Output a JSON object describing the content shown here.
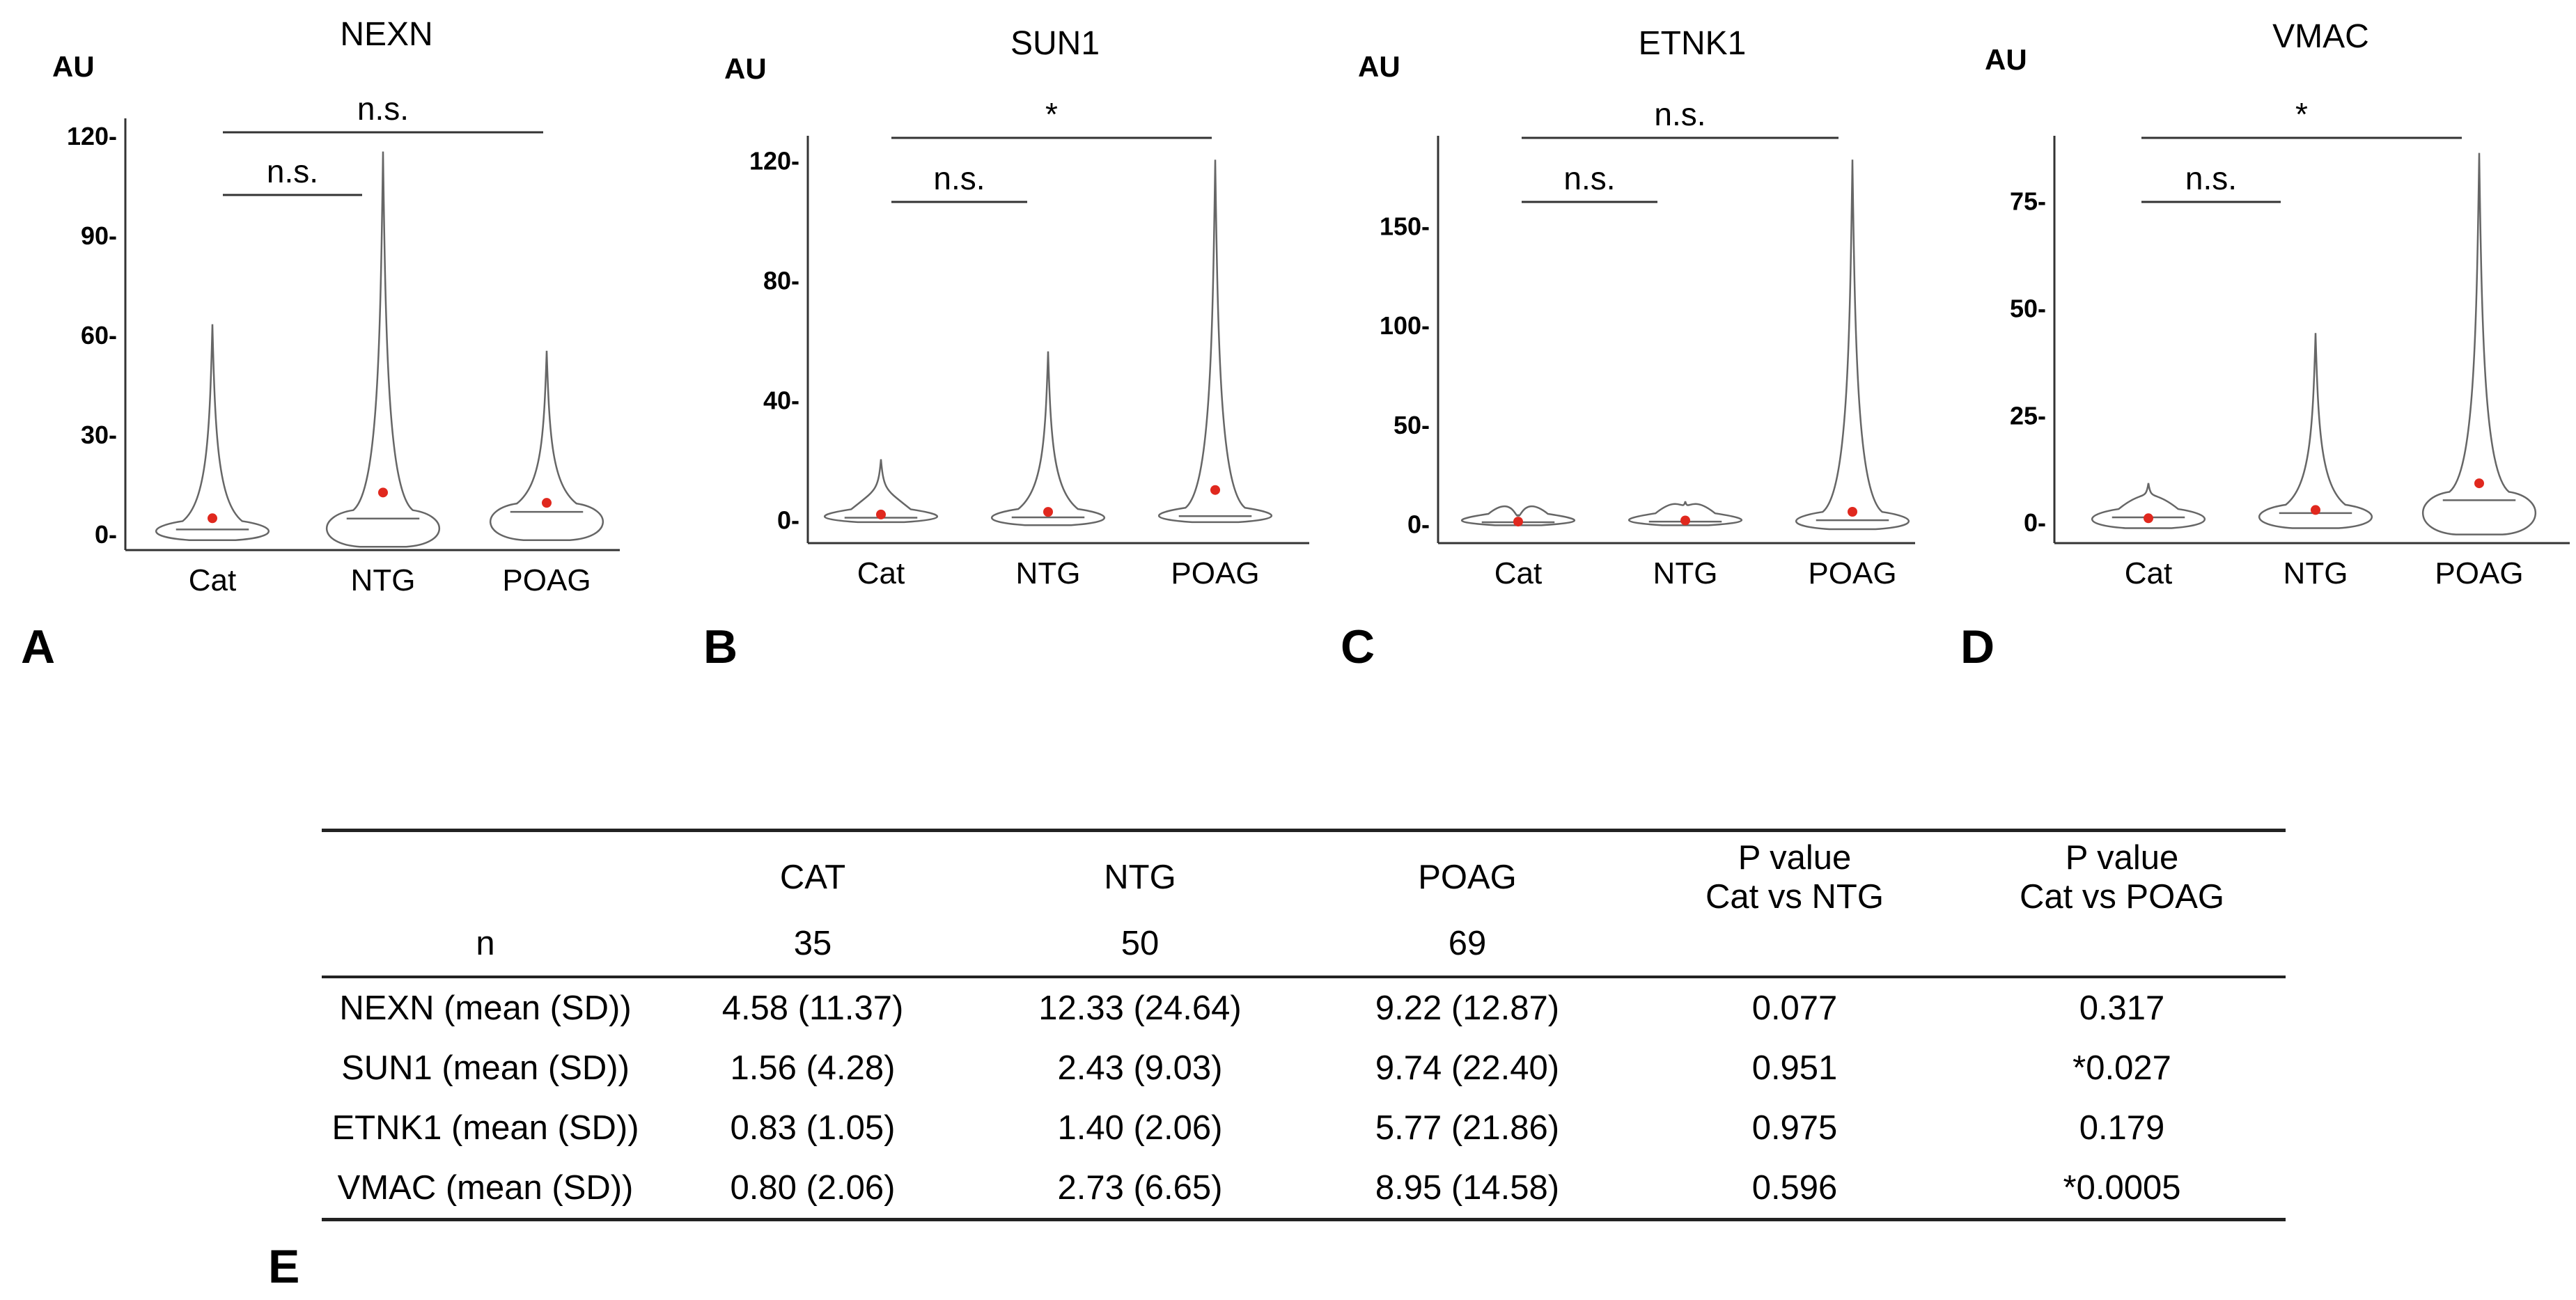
{
  "chart_data": [
    {
      "type": "violin",
      "panel": "A",
      "title": "NEXN",
      "ylabel": "AU",
      "categories": [
        "Cat",
        "NTG",
        "POAG"
      ],
      "ylim": [
        -5,
        125
      ],
      "yticks": [
        0,
        30,
        60,
        90,
        120
      ],
      "ytick_labels": [
        "0-",
        "30-",
        "60-",
        "90-",
        "120-"
      ],
      "means": [
        4.58,
        12.33,
        9.22
      ],
      "medians": [
        1.2,
        4.5,
        6.5
      ],
      "maxima": [
        63,
        115,
        55
      ],
      "minima": [
        -2,
        -4,
        -2
      ],
      "comparisons": [
        {
          "from": "Cat",
          "to": "NTG",
          "label": "n.s."
        },
        {
          "from": "Cat",
          "to": "POAG",
          "label": "n.s."
        }
      ]
    },
    {
      "type": "violin",
      "panel": "B",
      "title": "SUN1",
      "ylabel": "AU",
      "categories": [
        "Cat",
        "NTG",
        "POAG"
      ],
      "ylim": [
        -8,
        128
      ],
      "yticks": [
        0,
        40,
        80,
        120
      ],
      "ytick_labels": [
        "0-",
        "40-",
        "80-",
        "120-"
      ],
      "means": [
        1.56,
        2.43,
        9.74
      ],
      "medians": [
        0.5,
        0.6,
        1.0
      ],
      "maxima": [
        20,
        56,
        120
      ],
      "minima": [
        -1,
        -2,
        -1
      ],
      "comparisons": [
        {
          "from": "Cat",
          "to": "NTG",
          "label": "n.s."
        },
        {
          "from": "Cat",
          "to": "POAG",
          "label": "*"
        }
      ]
    },
    {
      "type": "violin",
      "panel": "C",
      "title": "ETNK1",
      "ylabel": "AU",
      "categories": [
        "Cat",
        "NTG",
        "POAG"
      ],
      "ylim": [
        -10,
        195
      ],
      "yticks": [
        0,
        50,
        100,
        150
      ],
      "ytick_labels": [
        "0-",
        "50-",
        "100-",
        "150-"
      ],
      "means": [
        0.83,
        1.4,
        5.77
      ],
      "medians": [
        0.5,
        0.8,
        1.5
      ],
      "maxima": [
        4,
        11,
        183
      ],
      "minima": [
        -1,
        -1,
        -3
      ],
      "comparisons": [
        {
          "from": "Cat",
          "to": "NTG",
          "label": "n.s."
        },
        {
          "from": "Cat",
          "to": "POAG",
          "label": "n.s."
        }
      ]
    },
    {
      "type": "violin",
      "panel": "D",
      "title": "VMAC",
      "ylabel": "AU",
      "categories": [
        "Cat",
        "NTG",
        "POAG"
      ],
      "ylim": [
        -5,
        90
      ],
      "yticks": [
        0,
        25,
        50,
        75
      ],
      "ytick_labels": [
        "0-",
        "25-",
        "50-",
        "75-"
      ],
      "means": [
        0.8,
        2.73,
        8.95
      ],
      "medians": [
        1.0,
        2.0,
        5.0
      ],
      "maxima": [
        9,
        44,
        86
      ],
      "minima": [
        -1.5,
        -1.5,
        -3
      ],
      "comparisons": [
        {
          "from": "Cat",
          "to": "NTG",
          "label": "n.s."
        },
        {
          "from": "Cat",
          "to": "POAG",
          "label": "*"
        }
      ]
    },
    {
      "type": "table",
      "panel": "E",
      "columns": [
        "",
        "CAT",
        "NTG",
        "POAG",
        "P value Cat vs NTG",
        "P value Cat vs POAG"
      ],
      "n_row": [
        "n",
        "35",
        "50",
        "69",
        "",
        ""
      ],
      "rows": [
        [
          "NEXN (mean (SD))",
          "4.58 (11.37)",
          "12.33 (24.64)",
          "9.22 (12.87)",
          "0.077",
          "0.317"
        ],
        [
          "SUN1 (mean (SD))",
          "1.56 (4.28)",
          "2.43 (9.03)",
          "9.74 (22.40)",
          "0.951",
          "*0.027"
        ],
        [
          "ETNK1 (mean (SD))",
          "0.83 (1.05)",
          "1.40 (2.06)",
          "5.77 (21.86)",
          "0.975",
          "0.179"
        ],
        [
          "VMAC (mean (SD))",
          "0.80 (2.06)",
          "2.73 (6.65)",
          "8.95 (14.58)",
          "0.596",
          "*0.0005"
        ]
      ]
    }
  ],
  "table": {
    "header": {
      "blank": "",
      "cat": "CAT",
      "ntg": "NTG",
      "poag": "POAG",
      "p1_line1": "P value",
      "p1_line2": "Cat vs NTG",
      "p2_line1": "P value",
      "p2_line2": "Cat vs POAG"
    },
    "n_row": {
      "label": "n",
      "cat": "35",
      "ntg": "50",
      "poag": "69",
      "p1": "",
      "p2": ""
    },
    "rows": [
      {
        "label": "NEXN (mean (SD))",
        "cat": "4.58 (11.37)",
        "ntg": "12.33 (24.64)",
        "poag": "9.22 (12.87)",
        "p1": "0.077",
        "p2": "0.317"
      },
      {
        "label": "SUN1 (mean (SD))",
        "cat": "1.56 (4.28)",
        "ntg": "2.43 (9.03)",
        "poag": "9.74 (22.40)",
        "p1": "0.951",
        "p2": "*0.027"
      },
      {
        "label": "ETNK1 (mean (SD))",
        "cat": "0.83 (1.05)",
        "ntg": "1.40 (2.06)",
        "poag": "5.77 (21.86)",
        "p1": "0.975",
        "p2": "0.179"
      },
      {
        "label": "VMAC (mean (SD))",
        "cat": "0.80 (2.06)",
        "ntg": "2.73 (6.65)",
        "poag": "8.95 (14.58)",
        "p1": "0.596",
        "p2": "*0.0005"
      }
    ]
  },
  "panel_letters": {
    "a": "A",
    "b": "B",
    "c": "C",
    "d": "D",
    "e": "E"
  },
  "colors": {
    "axis": "#333333",
    "violin": "#666666",
    "mean_dot": "#e0281e",
    "text": "#000000"
  }
}
